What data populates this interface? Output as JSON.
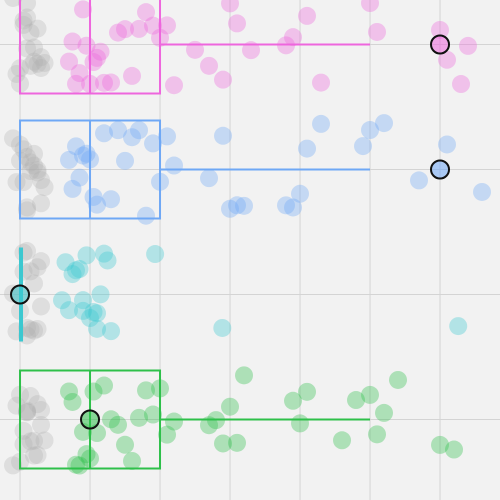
{
  "chart_data": {
    "type": "box",
    "xlim": [
      -0.286,
      6.857
    ],
    "xticks": [
      0,
      1,
      2,
      3,
      4,
      5,
      6
    ],
    "grid": true,
    "categories": [
      null,
      null,
      null,
      null
    ],
    "faded_color": "#b0b0b0",
    "series": [
      {
        "color": "#ee66dd",
        "q1": 0,
        "median": 1,
        "q3": 2,
        "whislo": 0,
        "whishi": 5,
        "mean": 6,
        "points": [
          0.7,
          0.75,
          0.8,
          0.85,
          0.9,
          0.95,
          1.0,
          1.05,
          1.1,
          1.15,
          1.2,
          1.3,
          1.4,
          1.5,
          1.6,
          1.7,
          1.8,
          1.9,
          2.0,
          2.1,
          2.2,
          2.5,
          2.7,
          2.9,
          3.0,
          3.1,
          3.3,
          3.8,
          3.9,
          4.1,
          4.3,
          5.0,
          5.1,
          6.0,
          6.1,
          6.3,
          6.4
        ],
        "faded_points": [
          -0.1,
          0.0,
          0.05,
          0.1,
          0.15,
          0.2,
          0.25,
          0.3,
          0.0,
          0.1,
          0.2,
          0.3,
          -0.05,
          0.05,
          0.15,
          0.25,
          0.35,
          0.1
        ]
      },
      {
        "color": "#6fa8f5",
        "q1": 0,
        "median": 1,
        "q3": 2,
        "whislo": 0,
        "whishi": 5,
        "mean": 6,
        "points": [
          0.7,
          0.75,
          0.8,
          0.85,
          0.9,
          0.95,
          1.0,
          1.05,
          1.1,
          1.2,
          1.3,
          1.4,
          1.5,
          1.6,
          1.7,
          1.8,
          1.9,
          2.0,
          2.1,
          2.2,
          2.7,
          2.9,
          3.0,
          3.1,
          3.2,
          3.8,
          3.9,
          4.0,
          4.1,
          4.3,
          4.9,
          5.0,
          5.2,
          5.7,
          6.1,
          6.6
        ],
        "faded_points": [
          -0.1,
          0.0,
          0.05,
          0.1,
          0.15,
          0.2,
          0.25,
          0.3,
          0.0,
          0.1,
          0.2,
          0.3,
          -0.05,
          0.05,
          0.15,
          0.25,
          0.35,
          0.1
        ]
      },
      {
        "color": "#3cc8d0",
        "q1": 0,
        "median": 0,
        "q3": 0,
        "whislo": 0,
        "whishi": 0,
        "mean": 0,
        "points": [
          0.6,
          0.7,
          0.75,
          0.8,
          0.85,
          0.9,
          0.95,
          1.0,
          1.05,
          1.1,
          1.15,
          1.2,
          1.25,
          1.3,
          0.65,
          0.9,
          1.1,
          1.93,
          2.89,
          6.26
        ],
        "faded_points": [
          -0.1,
          0.0,
          0.05,
          0.1,
          0.15,
          0.2,
          0.25,
          0.3,
          0.0,
          0.1,
          0.2,
          0.3,
          -0.05,
          0.05,
          0.15,
          0.25,
          0.1
        ]
      },
      {
        "color": "#2ec04a",
        "q1": 0,
        "median": 1,
        "q3": 2,
        "whislo": 0,
        "whishi": 5,
        "mean": 1,
        "points": [
          0.7,
          0.75,
          0.8,
          0.85,
          0.9,
          0.95,
          1.0,
          1.05,
          1.1,
          1.2,
          1.3,
          1.4,
          1.5,
          1.6,
          1.7,
          1.8,
          1.9,
          2.0,
          2.1,
          2.2,
          2.7,
          2.8,
          2.9,
          3.0,
          3.1,
          3.2,
          3.9,
          4.0,
          4.1,
          4.6,
          4.8,
          5.0,
          5.1,
          5.2,
          5.4,
          6.0,
          6.2
        ],
        "faded_points": [
          -0.1,
          0.0,
          0.05,
          0.1,
          0.15,
          0.2,
          0.25,
          0.3,
          0.0,
          0.1,
          0.2,
          0.3,
          -0.05,
          0.05,
          0.15,
          0.25,
          0.35,
          0.1
        ]
      }
    ]
  }
}
